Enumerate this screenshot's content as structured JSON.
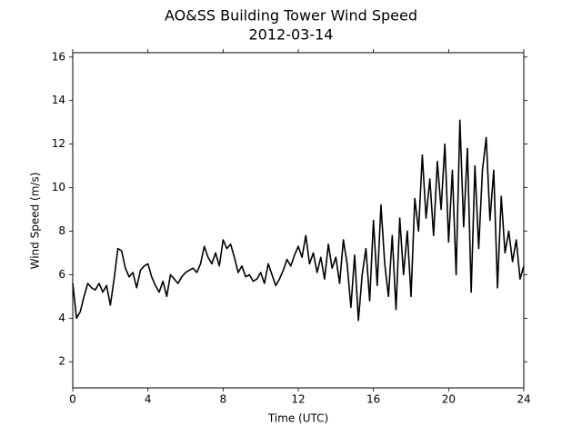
{
  "chart_data": {
    "type": "line",
    "title": "AO&SS Building Tower Wind Speed",
    "subtitle": "2012-03-14",
    "x_label": "Time (UTC)",
    "y_label": "Wind Speed (m/s)",
    "color": "#000000",
    "xlim": [
      0,
      24
    ],
    "xticks": [
      0,
      4,
      8,
      12,
      16,
      20,
      24
    ],
    "ylim": [
      0.8,
      16.2
    ],
    "yticks": [
      2,
      4,
      6,
      8,
      10,
      12,
      14,
      16
    ],
    "x": [
      0,
      0.2,
      0.4,
      0.6,
      0.8,
      1,
      1.2,
      1.4,
      1.6,
      1.8,
      2,
      2.2,
      2.4,
      2.6,
      2.8,
      3,
      3.2,
      3.4,
      3.6,
      3.8,
      4,
      4.2,
      4.4,
      4.6,
      4.8,
      5,
      5.2,
      5.4,
      5.6,
      5.8,
      6,
      6.2,
      6.4,
      6.6,
      6.8,
      7,
      7.2,
      7.4,
      7.6,
      7.8,
      8,
      8.2,
      8.4,
      8.6,
      8.8,
      9,
      9.2,
      9.4,
      9.6,
      9.8,
      10,
      10.2,
      10.4,
      10.6,
      10.8,
      11,
      11.2,
      11.4,
      11.6,
      11.8,
      12,
      12.2,
      12.4,
      12.6,
      12.8,
      13,
      13.2,
      13.4,
      13.6,
      13.8,
      14,
      14.2,
      14.4,
      14.6,
      14.8,
      15,
      15.2,
      15.4,
      15.6,
      15.8,
      16,
      16.2,
      16.4,
      16.6,
      16.8,
      17,
      17.2,
      17.4,
      17.6,
      17.8,
      18,
      18.2,
      18.4,
      18.6,
      18.8,
      19,
      19.2,
      19.4,
      19.6,
      19.8,
      20,
      20.2,
      20.4,
      20.6,
      20.8,
      21,
      21.2,
      21.4,
      21.6,
      21.8,
      22,
      22.2,
      22.4,
      22.6,
      22.8,
      23,
      23.2,
      23.4,
      23.6,
      23.8,
      24
    ],
    "values": [
      5.6,
      4.0,
      4.3,
      5.0,
      5.6,
      5.4,
      5.3,
      5.6,
      5.2,
      5.5,
      4.6,
      5.8,
      7.2,
      7.1,
      6.3,
      5.9,
      6.1,
      5.4,
      6.2,
      6.4,
      6.5,
      5.9,
      5.5,
      5.2,
      5.7,
      5.0,
      6.0,
      5.8,
      5.6,
      5.9,
      6.1,
      6.2,
      6.3,
      6.1,
      6.5,
      7.3,
      6.8,
      6.5,
      7.0,
      6.4,
      7.6,
      7.2,
      7.4,
      6.8,
      6.1,
      6.4,
      5.9,
      6.0,
      5.7,
      5.8,
      6.1,
      5.6,
      6.5,
      6.0,
      5.5,
      5.8,
      6.2,
      6.7,
      6.4,
      6.9,
      7.3,
      6.8,
      7.8,
      6.5,
      7.0,
      6.1,
      6.8,
      5.8,
      7.4,
      6.3,
      6.8,
      5.6,
      7.6,
      6.5,
      4.5,
      6.9,
      3.9,
      6.0,
      7.2,
      4.8,
      8.5,
      5.5,
      9.2,
      6.5,
      5.0,
      7.8,
      4.4,
      8.6,
      6.0,
      8.0,
      5.0,
      9.5,
      8.0,
      11.5,
      8.6,
      10.4,
      7.8,
      11.2,
      9.0,
      12.0,
      7.5,
      10.8,
      6.0,
      13.1,
      8.2,
      11.8,
      5.2,
      11.0,
      7.2,
      10.8,
      12.3,
      8.5,
      10.8,
      5.4,
      9.6,
      7.0,
      8.0,
      6.6,
      7.6,
      5.8,
      6.4
    ]
  }
}
